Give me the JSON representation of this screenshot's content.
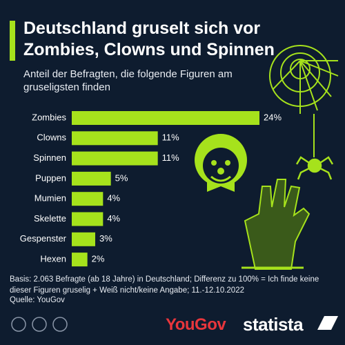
{
  "chart_data": {
    "type": "bar",
    "orientation": "horizontal",
    "title": "Deutschland gruselt sich vor Zombies, Clowns und Spinnen",
    "subtitle": "Anteil der Befragten, die folgende Figuren am gruseligsten finden",
    "categories": [
      "Zombies",
      "Clowns",
      "Spinnen",
      "Puppen",
      "Mumien",
      "Skelette",
      "Gespenster",
      "Hexen"
    ],
    "values": [
      24,
      11,
      11,
      5,
      4,
      4,
      3,
      2
    ],
    "value_labels": [
      "24%",
      "11%",
      "11%",
      "5%",
      "4%",
      "4%",
      "3%",
      "2%"
    ],
    "color": "#a6e21c",
    "note": "Basis: 2.063 Befragte (ab 18 Jahre) in Deutschland; Differenz zu 100% = Ich finde keine dieser Figuren gruselig + Weiß nicht/keine Angabe; 11.-12.10.2022",
    "source": "Quelle: YouGov",
    "logos": [
      "YouGov",
      "statista"
    ]
  }
}
